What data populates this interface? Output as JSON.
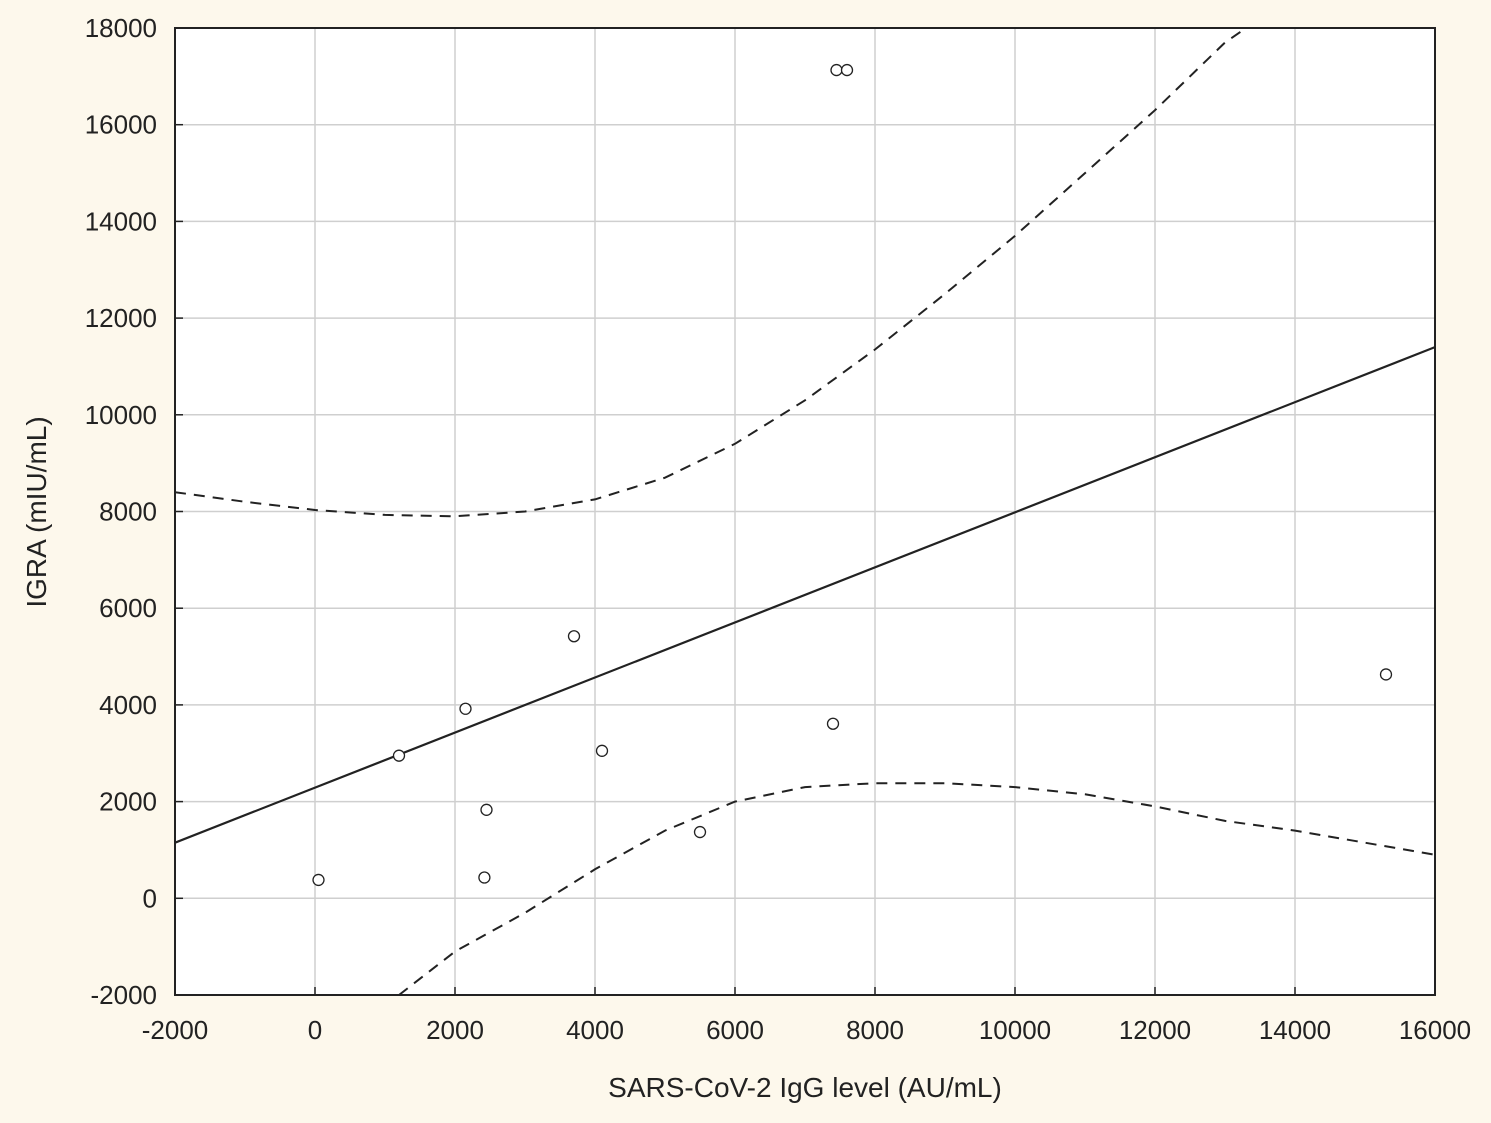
{
  "chart_data": {
    "type": "scatter",
    "title": "",
    "xlabel": "SARS-CoV-2 IgG level (AU/mL)",
    "ylabel": "IGRA (mIU/mL)",
    "xlim": [
      -2000,
      16000
    ],
    "ylim": [
      -2000,
      18000
    ],
    "xticks": [
      -2000,
      0,
      2000,
      4000,
      6000,
      8000,
      10000,
      12000,
      14000,
      16000
    ],
    "yticks": [
      -2000,
      0,
      2000,
      4000,
      6000,
      8000,
      10000,
      12000,
      14000,
      16000,
      18000
    ],
    "grid": true,
    "points": [
      {
        "x": 50,
        "y": 380
      },
      {
        "x": 1200,
        "y": 2950
      },
      {
        "x": 2150,
        "y": 3920
      },
      {
        "x": 2450,
        "y": 1830
      },
      {
        "x": 2420,
        "y": 430
      },
      {
        "x": 3700,
        "y": 5420
      },
      {
        "x": 4100,
        "y": 3050
      },
      {
        "x": 5500,
        "y": 1370
      },
      {
        "x": 7400,
        "y": 3610
      },
      {
        "x": 7450,
        "y": 17130
      },
      {
        "x": 7600,
        "y": 17130
      },
      {
        "x": 15300,
        "y": 4630
      }
    ],
    "fit_line": {
      "style": "solid",
      "x": [
        -2000,
        16000
      ],
      "y": [
        1150,
        11400
      ]
    },
    "confidence_upper": {
      "style": "dashed",
      "x": [
        -2000,
        -1000,
        0,
        1000,
        2000,
        3000,
        4000,
        5000,
        6000,
        7000,
        8000,
        9000,
        10000,
        11000,
        12000,
        13000,
        13300
      ],
      "y": [
        8400,
        8200,
        8030,
        7930,
        7900,
        8000,
        8250,
        8700,
        9400,
        10300,
        11350,
        12500,
        13700,
        15000,
        16300,
        17700,
        18000
      ]
    },
    "confidence_lower": {
      "style": "dashed",
      "x": [
        1200,
        2000,
        3000,
        4000,
        5000,
        6000,
        7000,
        8000,
        9000,
        10000,
        11000,
        12000,
        13000,
        14000,
        15000,
        16000
      ],
      "y": [
        -2000,
        -1100,
        -300,
        600,
        1400,
        2000,
        2300,
        2380,
        2380,
        2300,
        2150,
        1900,
        1600,
        1400,
        1150,
        900
      ]
    }
  }
}
